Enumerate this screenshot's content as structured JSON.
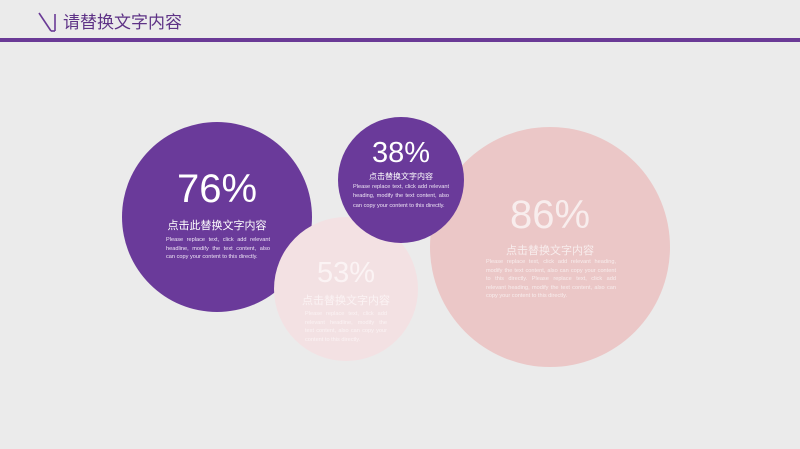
{
  "header": {
    "title": "请替换文字内容",
    "icon": "slash-icon",
    "accent_color": "#6a3a96"
  },
  "circles": [
    {
      "id": "c76",
      "percent": "76%",
      "heading": "点击此替换文字内容",
      "body": "Please replace text, click add relevant headline, modify the text content, also can copy your content to this directly.",
      "color": "#6a3a9a"
    },
    {
      "id": "c38",
      "percent": "38%",
      "heading": "点击替换文字内容",
      "body": "Please replace text, click add relevant heading, modify the text content, also can copy your content to this directly.",
      "color": "#6a3a9a"
    },
    {
      "id": "c53",
      "percent": "53%",
      "heading": "点击替换文字内容",
      "body": "Please replace text, click add relevant headline, modify the text content, also can copy your content to this directly.",
      "color": "#f3e1e3"
    },
    {
      "id": "c86",
      "percent": "86%",
      "heading": "点击替换文字内容",
      "body": "Please replace text, click add relevant heading, modify the text content, also can copy your content to this directly. Please replace text, click add relevant heading, modify the text content, also can copy your content to this directly.",
      "color": "#ebc7c7"
    }
  ]
}
